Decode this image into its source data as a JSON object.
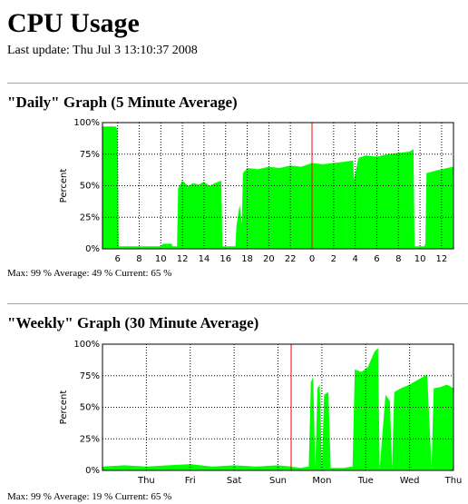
{
  "page": {
    "title": "CPU Usage",
    "last_update": "Last update: Thu Jul 3 13:10:37 2008"
  },
  "daily": {
    "heading": "\"Daily\" Graph (5 Minute Average)",
    "stats": "Max: 99 %  Average: 49 %  Current: 65 %"
  },
  "weekly": {
    "heading": "\"Weekly\" Graph (30 Minute Average)",
    "stats": "Max: 99 %  Average: 19 %  Current: 65 %"
  },
  "colors": {
    "fill": "#00ff00",
    "grid": "#000000",
    "marker": "#ff0000",
    "rule": "#a0a0a0"
  },
  "chart_data": [
    {
      "type": "area",
      "name": "daily",
      "ylabel": "Percent",
      "ylim": [
        0,
        100
      ],
      "yticks": [
        "0%",
        "25%",
        "50%",
        "75%",
        "100%"
      ],
      "xticks": [
        "6",
        "8",
        "10",
        "12",
        "14",
        "16",
        "18",
        "20",
        "22",
        "0",
        "2",
        "4",
        "6",
        "8",
        "10",
        "12"
      ],
      "xtick_hours": [
        6,
        8,
        10,
        12,
        14,
        16,
        18,
        20,
        22,
        24,
        26,
        28,
        30,
        32,
        34,
        36
      ],
      "x_range_hours": [
        4.6,
        37.1
      ],
      "marker_hour": 24,
      "grid": true,
      "points": [
        [
          4.6,
          97
        ],
        [
          5.8,
          97
        ],
        [
          6.0,
          95
        ],
        [
          6.1,
          2
        ],
        [
          10.0,
          2
        ],
        [
          10.2,
          4
        ],
        [
          11.0,
          4
        ],
        [
          11.1,
          2
        ],
        [
          11.5,
          2
        ],
        [
          11.6,
          48
        ],
        [
          12.0,
          54
        ],
        [
          12.5,
          50
        ],
        [
          13.0,
          52
        ],
        [
          13.5,
          51
        ],
        [
          14.0,
          53
        ],
        [
          14.5,
          50
        ],
        [
          15.0,
          52
        ],
        [
          15.6,
          54
        ],
        [
          15.7,
          2
        ],
        [
          16.9,
          2
        ],
        [
          17.0,
          18
        ],
        [
          17.3,
          35
        ],
        [
          17.5,
          20
        ],
        [
          17.6,
          60
        ],
        [
          18.0,
          64
        ],
        [
          19.0,
          63
        ],
        [
          20.0,
          65
        ],
        [
          21.0,
          64
        ],
        [
          22.0,
          66
        ],
        [
          23.0,
          65
        ],
        [
          24.0,
          68
        ],
        [
          25.0,
          67
        ],
        [
          26.0,
          68
        ],
        [
          27.0,
          69
        ],
        [
          27.8,
          70
        ],
        [
          27.9,
          55
        ],
        [
          28.3,
          72
        ],
        [
          29.0,
          74
        ],
        [
          30.0,
          73
        ],
        [
          31.0,
          75
        ],
        [
          32.0,
          76
        ],
        [
          33.0,
          77
        ],
        [
          33.4,
          79
        ],
        [
          33.5,
          2
        ],
        [
          34.4,
          2
        ],
        [
          34.5,
          4
        ],
        [
          34.6,
          60
        ],
        [
          35.5,
          62
        ],
        [
          36.5,
          64
        ],
        [
          37.1,
          65
        ]
      ]
    },
    {
      "type": "area",
      "name": "weekly",
      "ylabel": "Percent",
      "ylim": [
        0,
        100
      ],
      "yticks": [
        "0%",
        "25%",
        "50%",
        "75%",
        "100%"
      ],
      "xticks": [
        "Thu",
        "Fri",
        "Sat",
        "Sun",
        "Mon",
        "Tue",
        "Wed",
        "Thu"
      ],
      "xtick_days": [
        1.5,
        2.5,
        3.5,
        4.5,
        5.5,
        6.5,
        7.5,
        8.5
      ],
      "x_range_days": [
        0.5,
        8.5
      ],
      "marker_day": 4.8,
      "grid": true,
      "points": [
        [
          0.5,
          3
        ],
        [
          1.0,
          4
        ],
        [
          1.5,
          3
        ],
        [
          2.0,
          4
        ],
        [
          2.5,
          5
        ],
        [
          3.0,
          3
        ],
        [
          3.5,
          4
        ],
        [
          4.0,
          3
        ],
        [
          4.5,
          4
        ],
        [
          4.8,
          3
        ],
        [
          5.0,
          2
        ],
        [
          5.2,
          3
        ],
        [
          5.25,
          70
        ],
        [
          5.3,
          74
        ],
        [
          5.35,
          2
        ],
        [
          5.4,
          65
        ],
        [
          5.45,
          68
        ],
        [
          5.5,
          2
        ],
        [
          5.55,
          60
        ],
        [
          5.65,
          62
        ],
        [
          5.7,
          2
        ],
        [
          6.0,
          2
        ],
        [
          6.2,
          3
        ],
        [
          6.25,
          80
        ],
        [
          6.4,
          78
        ],
        [
          6.55,
          82
        ],
        [
          6.7,
          94
        ],
        [
          6.78,
          97
        ],
        [
          6.82,
          2
        ],
        [
          6.95,
          60
        ],
        [
          7.05,
          55
        ],
        [
          7.1,
          2
        ],
        [
          7.15,
          62
        ],
        [
          7.3,
          65
        ],
        [
          7.5,
          68
        ],
        [
          7.7,
          72
        ],
        [
          7.9,
          76
        ],
        [
          8.0,
          2
        ],
        [
          8.05,
          65
        ],
        [
          8.2,
          66
        ],
        [
          8.35,
          68
        ],
        [
          8.5,
          65
        ]
      ]
    }
  ]
}
